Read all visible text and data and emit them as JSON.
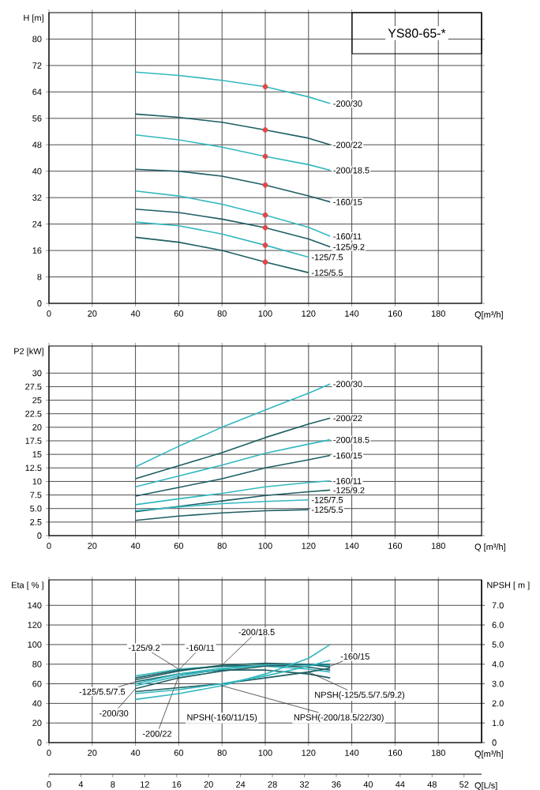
{
  "chart_data": [
    {
      "type": "line",
      "title": "YS80-65-*",
      "xlabel": "Q[m³/h]",
      "ylabel": "H [m]",
      "xlim": [
        0,
        200
      ],
      "ylim": [
        0,
        88
      ],
      "xticks": [
        0,
        20,
        40,
        60,
        80,
        100,
        120,
        140,
        160,
        180
      ],
      "yticks": [
        0,
        8,
        16,
        24,
        32,
        40,
        48,
        56,
        64,
        72,
        80
      ],
      "grid": true,
      "series": [
        {
          "name": "-200/30",
          "color": "#33b8bf",
          "x": [
            40,
            60,
            80,
            100,
            120,
            130
          ],
          "values": [
            70,
            69,
            67.5,
            65.6,
            62.5,
            60.5
          ]
        },
        {
          "name": "-200/22",
          "color": "#1e5e63",
          "x": [
            40,
            60,
            80,
            100,
            120,
            130
          ],
          "values": [
            57.3,
            56.3,
            54.8,
            52.5,
            50,
            48
          ]
        },
        {
          "name": "-200/18.5",
          "color": "#33b8bf",
          "x": [
            40,
            60,
            80,
            100,
            120,
            130
          ],
          "values": [
            51,
            49.5,
            47.3,
            44.5,
            42,
            40.3
          ]
        },
        {
          "name": "-160/15",
          "color": "#1e5e63",
          "x": [
            40,
            60,
            80,
            100,
            120,
            130
          ],
          "values": [
            40.6,
            40,
            38.5,
            35.8,
            32.5,
            30.7
          ]
        },
        {
          "name": "-160/11",
          "color": "#33b8bf",
          "x": [
            40,
            60,
            80,
            100,
            120,
            130
          ],
          "values": [
            34,
            32.5,
            30,
            26.7,
            23,
            20.3
          ]
        },
        {
          "name": "-125/9.2",
          "color": "#1e5e63",
          "x": [
            40,
            60,
            80,
            100,
            120,
            130
          ],
          "values": [
            28.5,
            27.5,
            25.5,
            22.9,
            19.5,
            17.1
          ]
        },
        {
          "name": "-125/7.5",
          "color": "#33b8bf",
          "x": [
            40,
            60,
            80,
            100,
            120
          ],
          "values": [
            24.6,
            23.5,
            21,
            17.6,
            14
          ]
        },
        {
          "name": "-125/5.5",
          "color": "#1e5e63",
          "x": [
            40,
            60,
            80,
            100,
            120
          ],
          "values": [
            20,
            18.5,
            16,
            12.5,
            9.3
          ]
        },
        {
          "type": "scatter",
          "marker": "circle",
          "color": "#e04848",
          "x": [
            100,
            100,
            100,
            100,
            100,
            100,
            100,
            100
          ],
          "values": [
            65.6,
            52.5,
            44.5,
            35.8,
            26.7,
            22.9,
            17.6,
            12.5
          ]
        }
      ]
    },
    {
      "type": "line",
      "xlabel": "Q [m³/h]",
      "ylabel": "P2 [kW]",
      "xlim": [
        0,
        200
      ],
      "ylim": [
        0,
        35
      ],
      "xticks": [
        0,
        20,
        40,
        60,
        80,
        100,
        120,
        140,
        160,
        180
      ],
      "yticks": [
        0,
        2.5,
        {
          "value": 5,
          "label": "5.0"
        },
        7.5,
        10,
        12.5,
        15,
        17.5,
        20,
        22.5,
        25,
        27.5,
        30
      ],
      "grid": true,
      "series": [
        {
          "name": "-200/30",
          "color": "#33b8bf",
          "x": [
            40,
            60,
            80,
            100,
            120,
            130
          ],
          "values": [
            12.7,
            16.5,
            20,
            23.2,
            26.3,
            28
          ]
        },
        {
          "name": "-200/22",
          "color": "#1e5e63",
          "x": [
            40,
            60,
            80,
            100,
            120,
            130
          ],
          "values": [
            10.5,
            12.9,
            15.3,
            18.1,
            20.6,
            21.7
          ]
        },
        {
          "name": "-200/18.5",
          "color": "#33b8bf",
          "x": [
            40,
            60,
            80,
            100,
            120,
            130
          ],
          "values": [
            9,
            11,
            13,
            15.2,
            16.9,
            17.7
          ]
        },
        {
          "name": "-160/15",
          "color": "#1e5e63",
          "x": [
            40,
            60,
            80,
            100,
            120,
            130
          ],
          "values": [
            7.3,
            8.9,
            10.5,
            12.5,
            14,
            14.8
          ]
        },
        {
          "name": "-160/11",
          "color": "#33b8bf",
          "x": [
            40,
            60,
            80,
            100,
            120,
            130
          ],
          "values": [
            5.7,
            6.8,
            7.8,
            9,
            9.8,
            10.1
          ]
        },
        {
          "name": "-125/9.2",
          "color": "#1e5e63",
          "x": [
            40,
            60,
            80,
            100,
            120,
            130
          ],
          "values": [
            4.4,
            5.4,
            6.4,
            7.4,
            8.1,
            8.4
          ]
        },
        {
          "name": "-125/7.5",
          "color": "#33b8bf",
          "x": [
            40,
            60,
            80,
            100,
            120
          ],
          "values": [
            4.6,
            5.3,
            5.9,
            6.3,
            6.6
          ]
        },
        {
          "name": "-125/5.5",
          "color": "#1e5e63",
          "x": [
            40,
            60,
            80,
            100,
            120
          ],
          "values": [
            2.8,
            3.6,
            4.2,
            4.6,
            4.8
          ]
        }
      ]
    },
    {
      "type": "line",
      "xlabel": "Q[m³/h]",
      "ylabel": "Eta [ % ]",
      "y2label": "NPSH [ m ]",
      "x2label": "Q[L/s]",
      "xlim": [
        0,
        200
      ],
      "ylim": [
        0,
        166
      ],
      "y2lim": [
        0,
        8.3
      ],
      "x2lim": [
        0,
        54.2
      ],
      "xticks": [
        0,
        20,
        40,
        60,
        80,
        100,
        120,
        140,
        160,
        180
      ],
      "yticks": [
        0,
        20,
        40,
        60,
        80,
        100,
        120,
        140
      ],
      "y2ticks": [
        0,
        {
          "value": 1,
          "label": "1.0"
        },
        {
          "value": 2,
          "label": "2.0"
        },
        {
          "value": 3,
          "label": "3.0"
        },
        {
          "value": 4,
          "label": "4.0"
        },
        {
          "value": 5,
          "label": "5.0"
        },
        {
          "value": 6,
          "label": "6.0"
        },
        {
          "value": 7,
          "label": "7.0"
        }
      ],
      "x2ticks": [
        0,
        4,
        8,
        12,
        16,
        20,
        24,
        28,
        32,
        36,
        40,
        44,
        48,
        52
      ],
      "grid": true,
      "series": [
        {
          "name": "-125/5.5/7.5",
          "color": "#1e5e63",
          "x": [
            40,
            60,
            80,
            100,
            120,
            130
          ],
          "values": [
            62,
            70,
            74,
            74,
            70,
            66
          ]
        },
        {
          "name": "-125/9.2",
          "color": "#33b8bf",
          "x": [
            40,
            60,
            80,
            100,
            120,
            130
          ],
          "values": [
            68,
            75,
            78,
            78,
            75,
            72
          ]
        },
        {
          "name": "-160/11",
          "color": "#1e5e63",
          "x": [
            40,
            60,
            80,
            100,
            120,
            130
          ],
          "values": [
            66,
            74,
            78,
            79,
            77,
            74
          ]
        },
        {
          "name": "-160/15",
          "color": "#33b8bf",
          "x": [
            40,
            60,
            80,
            100,
            120,
            130
          ],
          "values": [
            60,
            70,
            76,
            79,
            79,
            78
          ]
        },
        {
          "name": "-200/18.5",
          "color": "#1e5e63",
          "x": [
            40,
            60,
            80,
            100,
            120,
            130
          ],
          "values": [
            64,
            73,
            79,
            81,
            80,
            77
          ]
        },
        {
          "name": "-200/22",
          "color": "#33b8bf",
          "x": [
            40,
            60,
            80,
            100,
            120,
            130
          ],
          "values": [
            58,
            68,
            75,
            79,
            80,
            79
          ]
        },
        {
          "name": "-200/30",
          "color": "#1e5e63",
          "x": [
            40,
            60,
            80,
            100,
            120,
            130
          ],
          "values": [
            55,
            66,
            73,
            78,
            80,
            80
          ]
        },
        {
          "name": "NPSH(-125/5.5/7.5/9.2)",
          "axis": "y2",
          "color": "#1e5e63",
          "x": [
            40,
            60,
            80,
            100,
            120,
            130
          ],
          "values": [
            2.6,
            2.8,
            3.0,
            3.3,
            3.6,
            3.8
          ]
        },
        {
          "name": "NPSH(-160/11/15)",
          "axis": "y2",
          "color": "#33b8bf",
          "x": [
            40,
            60,
            80,
            100,
            120,
            130
          ],
          "values": [
            2.5,
            2.7,
            3.0,
            3.4,
            3.9,
            4.2
          ]
        },
        {
          "name": "NPSH(-200/18.5/22/30)",
          "axis": "y2",
          "color": "#33b8bf",
          "x": [
            40,
            60,
            80,
            100,
            120,
            130
          ],
          "values": [
            2.2,
            2.5,
            2.9,
            3.5,
            4.3,
            5.0
          ]
        }
      ]
    }
  ]
}
